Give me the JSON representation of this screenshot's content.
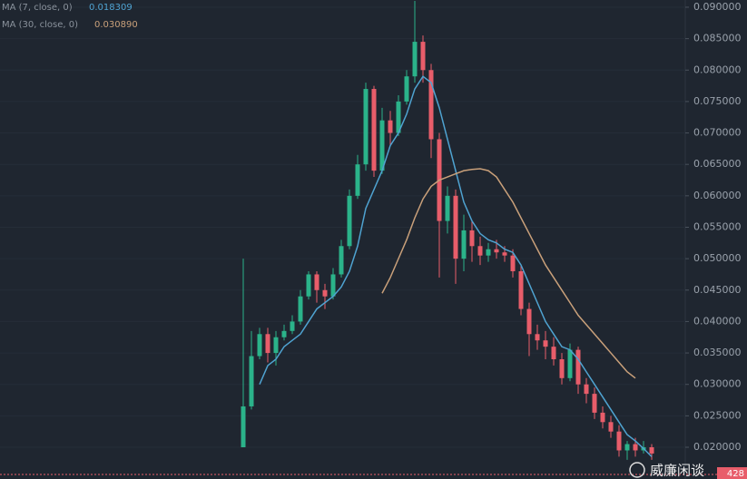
{
  "chart_data": {
    "type": "candlestick",
    "ylim": [
      0.01495,
      0.09115
    ],
    "yticks": [
      {
        "value": 0.09,
        "label": "0.090000"
      },
      {
        "value": 0.085,
        "label": "0.085000"
      },
      {
        "value": 0.08,
        "label": "0.080000"
      },
      {
        "value": 0.075,
        "label": "0.075000"
      },
      {
        "value": 0.07,
        "label": "0.070000"
      },
      {
        "value": 0.065,
        "label": "0.065000"
      },
      {
        "value": 0.06,
        "label": "0.060000"
      },
      {
        "value": 0.055,
        "label": "0.055000"
      },
      {
        "value": 0.05,
        "label": "0.050000"
      },
      {
        "value": 0.045,
        "label": "0.045000"
      },
      {
        "value": 0.04,
        "label": "0.040000"
      },
      {
        "value": 0.035,
        "label": "0.035000"
      },
      {
        "value": 0.03,
        "label": "0.030000"
      },
      {
        "value": 0.025,
        "label": "0.025000"
      },
      {
        "value": 0.02,
        "label": "0.020000"
      }
    ],
    "up_color": "#2bb38a",
    "down_color": "#e85d6a",
    "open": [
      0.02,
      0.0265,
      0.0345,
      0.038,
      0.035,
      0.0375,
      0.0385,
      0.04,
      0.044,
      0.0475,
      0.045,
      0.044,
      0.0475,
      0.052,
      0.06,
      0.065,
      0.077,
      0.064,
      0.072,
      0.07,
      0.075,
      0.079,
      0.0845,
      0.08,
      0.069,
      0.056,
      0.06,
      0.05,
      0.0545,
      0.052,
      0.0505,
      0.0515,
      0.051,
      0.0505,
      0.048,
      0.042,
      0.038,
      0.037,
      0.036,
      0.034,
      0.031,
      0.0355,
      0.03,
      0.0285,
      0.0255,
      0.024,
      0.0225,
      0.0195,
      0.0205,
      0.0195,
      0.02
    ],
    "high": [
      0.05,
      0.0385,
      0.039,
      0.039,
      0.0385,
      0.0395,
      0.041,
      0.045,
      0.048,
      0.048,
      0.046,
      0.0485,
      0.053,
      0.061,
      0.0665,
      0.078,
      0.0775,
      0.074,
      0.0735,
      0.076,
      0.08,
      0.091,
      0.0855,
      0.081,
      0.07,
      0.0615,
      0.061,
      0.057,
      0.056,
      0.0535,
      0.0525,
      0.053,
      0.052,
      0.0515,
      0.049,
      0.043,
      0.0395,
      0.0385,
      0.0375,
      0.035,
      0.0365,
      0.036,
      0.031,
      0.0295,
      0.0265,
      0.025,
      0.0235,
      0.021,
      0.0215,
      0.021,
      0.0205
    ],
    "low": [
      0.02,
      0.026,
      0.034,
      0.0335,
      0.033,
      0.037,
      0.038,
      0.0395,
      0.0435,
      0.043,
      0.042,
      0.0435,
      0.047,
      0.0515,
      0.0595,
      0.064,
      0.063,
      0.0635,
      0.068,
      0.0695,
      0.0745,
      0.078,
      0.078,
      0.066,
      0.047,
      0.054,
      0.046,
      0.048,
      0.0495,
      0.049,
      0.0495,
      0.05,
      0.0495,
      0.047,
      0.041,
      0.0345,
      0.0355,
      0.034,
      0.033,
      0.03,
      0.0305,
      0.0285,
      0.027,
      0.0245,
      0.023,
      0.0215,
      0.0185,
      0.018,
      0.0185,
      0.019,
      0.018
    ],
    "close": [
      0.0265,
      0.0345,
      0.038,
      0.035,
      0.0375,
      0.0385,
      0.04,
      0.044,
      0.0475,
      0.045,
      0.044,
      0.0475,
      0.052,
      0.06,
      0.065,
      0.077,
      0.064,
      0.072,
      0.07,
      0.075,
      0.079,
      0.0845,
      0.08,
      0.069,
      0.056,
      0.06,
      0.05,
      0.0545,
      0.052,
      0.0505,
      0.0515,
      0.051,
      0.0505,
      0.048,
      0.042,
      0.038,
      0.037,
      0.036,
      0.034,
      0.031,
      0.0355,
      0.03,
      0.0285,
      0.0255,
      0.024,
      0.0225,
      0.0195,
      0.0205,
      0.0195,
      0.02,
      0.019
    ],
    "series": [
      {
        "name": "MA (7, close, 0)",
        "value_label": "0.018309",
        "color": "#4fa3d1",
        "values": [
          null,
          null,
          0.03,
          0.033,
          0.034,
          0.036,
          0.037,
          0.038,
          0.04,
          0.042,
          0.043,
          0.044,
          0.0455,
          0.048,
          0.052,
          0.058,
          0.061,
          0.064,
          0.068,
          0.07,
          0.073,
          0.077,
          0.079,
          0.078,
          0.074,
          0.069,
          0.064,
          0.059,
          0.056,
          0.054,
          0.053,
          0.0525,
          0.0515,
          0.051,
          0.049,
          0.046,
          0.043,
          0.04,
          0.038,
          0.036,
          0.0355,
          0.034,
          0.032,
          0.03,
          0.028,
          0.026,
          0.024,
          0.022,
          0.021,
          0.0198,
          0.0185
        ]
      },
      {
        "name": "MA (30, close, 0)",
        "value_label": "0.030890",
        "color": "#c9a07a",
        "values": [
          null,
          null,
          null,
          null,
          null,
          null,
          null,
          null,
          null,
          null,
          null,
          null,
          null,
          null,
          null,
          null,
          null,
          0.0445,
          0.047,
          0.05,
          0.053,
          0.0565,
          0.0595,
          0.0615,
          0.0625,
          0.063,
          0.0635,
          0.064,
          0.0642,
          0.0643,
          0.064,
          0.063,
          0.061,
          0.059,
          0.0565,
          0.054,
          0.0515,
          0.049,
          0.047,
          0.045,
          0.043,
          0.041,
          0.0395,
          0.038,
          0.0365,
          0.035,
          0.0335,
          0.032,
          0.031,
          null,
          null
        ]
      }
    ],
    "last_price_label": "428",
    "watermark": "威廉闲谈"
  }
}
